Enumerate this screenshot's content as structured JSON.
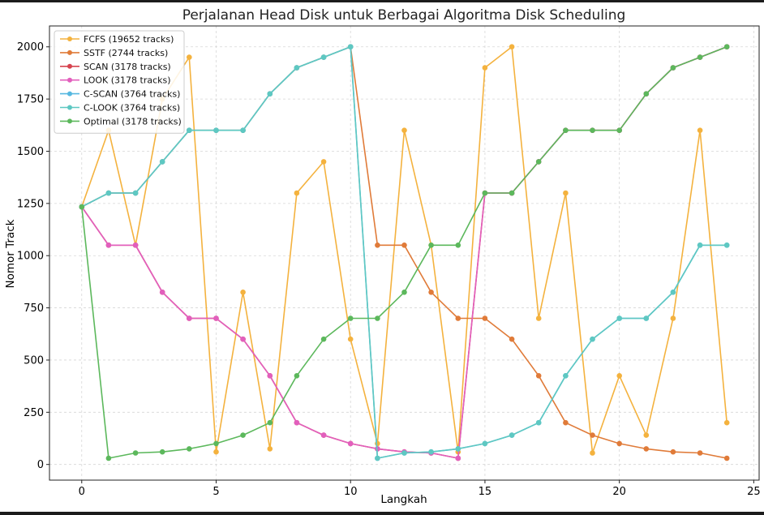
{
  "chart_data": {
    "type": "line",
    "title": "Perjalanan Head Disk untuk Berbagai Algoritma Disk Scheduling",
    "xlabel": "Langkah",
    "ylabel": "Nomor Track",
    "xlim": [
      -1.2,
      25.2
    ],
    "ylim": [
      -75,
      2100
    ],
    "xticks": [
      0,
      5,
      10,
      15,
      20,
      25
    ],
    "yticks": [
      0,
      250,
      500,
      750,
      1000,
      1250,
      1500,
      1750,
      2000
    ],
    "grid": true,
    "legend_position": "top-left",
    "series": [
      {
        "name": "FCFS (19652 tracks)",
        "color": "#f4b23e",
        "x": [
          0,
          1,
          2,
          3,
          4,
          5,
          6,
          7,
          8,
          9,
          10,
          11,
          12,
          13,
          14,
          15,
          16,
          17,
          18,
          19,
          20,
          21,
          22,
          23,
          24
        ],
        "y": [
          1234,
          1600,
          1050,
          1750,
          1950,
          60,
          825,
          75,
          1300,
          1450,
          600,
          100,
          1600,
          1050,
          60,
          1900,
          2000,
          700,
          1300,
          55,
          425,
          140,
          700,
          1600,
          200
        ]
      },
      {
        "name": "SSTF (2744 tracks)",
        "color": "#e07b39",
        "x": [
          0,
          1,
          2,
          3,
          4,
          5,
          6,
          7,
          8,
          9,
          10,
          11,
          12,
          13,
          14,
          15,
          16,
          17,
          18,
          19,
          20,
          21,
          22,
          23,
          24
        ],
        "y": [
          1234,
          1300,
          1300,
          1450,
          1600,
          1600,
          1600,
          1775,
          1900,
          1950,
          2000,
          1050,
          1050,
          825,
          700,
          700,
          600,
          425,
          200,
          140,
          100,
          75,
          60,
          55,
          30
        ]
      },
      {
        "name": "SCAN (3178 tracks)",
        "color": "#d6434f",
        "x": [
          0,
          1,
          2,
          3,
          4,
          5,
          6,
          7,
          8,
          9,
          10,
          11,
          12,
          13,
          14,
          15,
          16,
          17,
          18,
          19,
          20,
          21,
          22,
          23,
          24
        ],
        "y": [
          1234,
          1050,
          1050,
          825,
          700,
          700,
          600,
          425,
          200,
          140,
          100,
          75,
          60,
          55,
          30,
          1300,
          1300,
          1450,
          1600,
          1600,
          1600,
          1775,
          1900,
          1950,
          2000
        ]
      },
      {
        "name": "LOOK (3178 tracks)",
        "color": "#e25fbd",
        "x": [
          0,
          1,
          2,
          3,
          4,
          5,
          6,
          7,
          8,
          9,
          10,
          11,
          12,
          13,
          14,
          15,
          16,
          17,
          18,
          19,
          20,
          21,
          22,
          23,
          24
        ],
        "y": [
          1234,
          1050,
          1050,
          825,
          700,
          700,
          600,
          425,
          200,
          140,
          100,
          75,
          60,
          55,
          30,
          1300,
          1300,
          1450,
          1600,
          1600,
          1600,
          1775,
          1900,
          1950,
          2000
        ]
      },
      {
        "name": "C-SCAN (3764 tracks)",
        "color": "#56b8e0",
        "x": [
          0,
          1,
          2,
          3,
          4,
          5,
          6,
          7,
          8,
          9,
          10,
          11,
          12,
          13,
          14,
          15,
          16,
          17,
          18,
          19,
          20,
          21,
          22,
          23,
          24
        ],
        "y": [
          1234,
          1300,
          1300,
          1450,
          1600,
          1600,
          1600,
          1775,
          1900,
          1950,
          2000,
          30,
          55,
          60,
          75,
          100,
          140,
          200,
          425,
          600,
          700,
          700,
          825,
          1050,
          1050
        ]
      },
      {
        "name": "C-LOOK (3764 tracks)",
        "color": "#5ec8c2",
        "x": [
          0,
          1,
          2,
          3,
          4,
          5,
          6,
          7,
          8,
          9,
          10,
          11,
          12,
          13,
          14,
          15,
          16,
          17,
          18,
          19,
          20,
          21,
          22,
          23,
          24
        ],
        "y": [
          1234,
          1300,
          1300,
          1450,
          1600,
          1600,
          1600,
          1775,
          1900,
          1950,
          2000,
          30,
          55,
          60,
          75,
          100,
          140,
          200,
          425,
          600,
          700,
          700,
          825,
          1050,
          1050
        ]
      },
      {
        "name": "Optimal (3178 tracks)",
        "color": "#5cb85c",
        "x": [
          0,
          1,
          2,
          3,
          4,
          5,
          6,
          7,
          8,
          9,
          10,
          11,
          12,
          13,
          14,
          15,
          16,
          17,
          18,
          19,
          20,
          21,
          22,
          23,
          24
        ],
        "y": [
          1234,
          30,
          55,
          60,
          75,
          100,
          140,
          200,
          425,
          600,
          700,
          700,
          825,
          1050,
          1050,
          1300,
          1300,
          1450,
          1600,
          1600,
          1600,
          1775,
          1900,
          1950,
          2000
        ]
      }
    ]
  }
}
